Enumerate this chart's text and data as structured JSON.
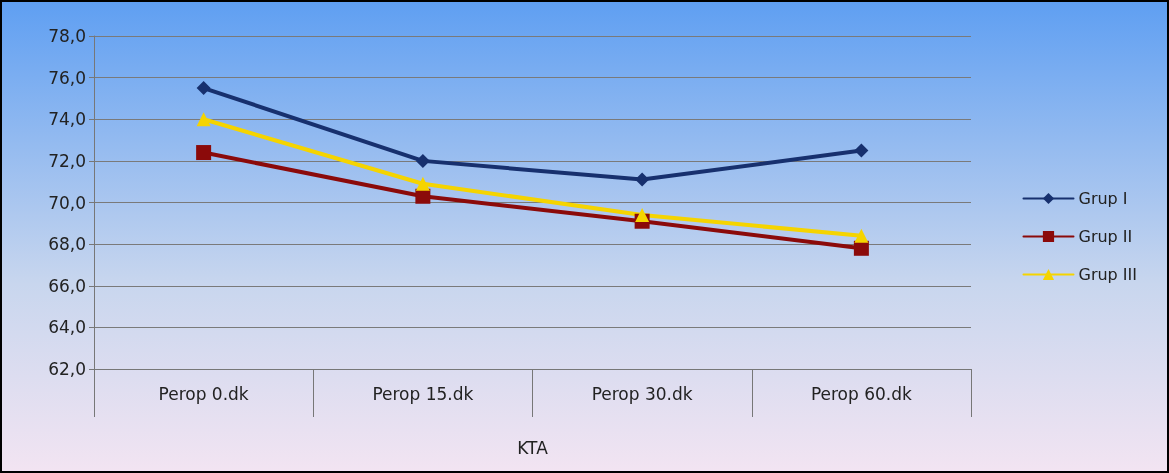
{
  "chart_data": {
    "type": "line",
    "xlabel": "KTA",
    "categories": [
      "Perop 0.dk",
      "Perop 15.dk",
      "Perop 30.dk",
      "Perop 60.dk"
    ],
    "series": [
      {
        "name": "Grup I",
        "color": "#17306e",
        "marker": "diamond",
        "values": [
          75.5,
          72.0,
          71.1,
          72.5
        ]
      },
      {
        "name": "Grup II",
        "color": "#8b0a0a",
        "marker": "square",
        "values": [
          72.4,
          70.3,
          69.1,
          67.8
        ]
      },
      {
        "name": "Grup III",
        "color": "#f5d400",
        "marker": "triangle",
        "values": [
          74.0,
          70.9,
          69.4,
          68.4
        ]
      }
    ],
    "ylim": [
      62,
      78
    ],
    "yticks": [
      {
        "value": 62,
        "label": "62,0"
      },
      {
        "value": 64,
        "label": "64,0"
      },
      {
        "value": 66,
        "label": "66,0"
      },
      {
        "value": 68,
        "label": "68,0"
      },
      {
        "value": 70,
        "label": "70,0"
      },
      {
        "value": 72,
        "label": "72,0"
      },
      {
        "value": 74,
        "label": "74,0"
      },
      {
        "value": 76,
        "label": "76,0"
      },
      {
        "value": 78,
        "label": "78,0"
      }
    ],
    "grid": "y",
    "legend": "right",
    "line_style": "solid"
  }
}
